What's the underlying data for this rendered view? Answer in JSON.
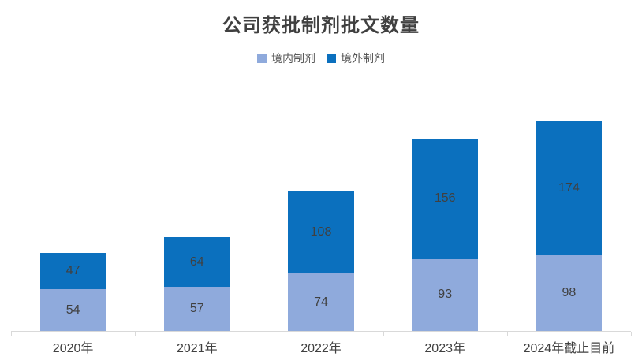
{
  "title": "公司获批制剂批文数量",
  "colors": {
    "series_domestic": "#8FAADC",
    "series_overseas": "#0B70BE",
    "axis_line": "#D9D9D9",
    "value_label": "#404040",
    "axis_label": "#404040",
    "legend_text": "#595959",
    "title_text": "#404040",
    "background": "#FFFFFF"
  },
  "chart_data": {
    "type": "bar",
    "stacked": true,
    "title": "公司获批制剂批文数量",
    "categories": [
      "2020年",
      "2021年",
      "2022年",
      "2023年",
      "2024年截止目前"
    ],
    "series": [
      {
        "name": "境内制剂",
        "color": "#8FAADC",
        "values": [
          54,
          57,
          74,
          93,
          98
        ]
      },
      {
        "name": "境外制剂",
        "color": "#0B70BE",
        "values": [
          47,
          64,
          108,
          156,
          174
        ]
      }
    ],
    "totals": [
      101,
      121,
      182,
      249,
      272
    ],
    "xlabel": "",
    "ylabel": "",
    "ylim": [
      0,
      280
    ],
    "grid": false,
    "y_axis_visible": false,
    "legend_position": "top",
    "data_labels": "inside-center"
  }
}
